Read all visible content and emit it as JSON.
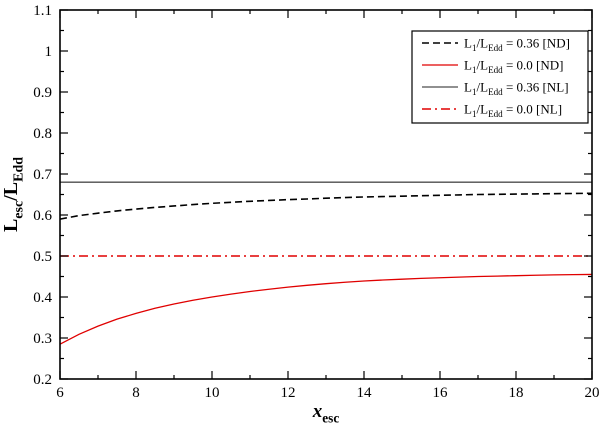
{
  "chart_data": {
    "type": "line",
    "title": "",
    "xlabel": "x_{esc}",
    "ylabel": "L_{esc}/L_{Edd}",
    "xlim": [
      6,
      20
    ],
    "ylim": [
      0.2,
      1.1
    ],
    "x_major_ticks": [
      6,
      8,
      10,
      12,
      14,
      16,
      18,
      20
    ],
    "x_tick_labels": [
      "6",
      "8",
      "10",
      "12",
      "14",
      "16",
      "18",
      "20"
    ],
    "x_minor_step": 1,
    "y_major_ticks": [
      0.2,
      0.3,
      0.4,
      0.5,
      0.6,
      0.7,
      0.8,
      0.9,
      1.0,
      1.1
    ],
    "y_tick_labels": [
      "0.2",
      "0.3",
      "0.4",
      "0.5",
      "0.6",
      "0.7",
      "0.8",
      "0.9",
      "1",
      "1.1"
    ],
    "y_minor_step": 0.05,
    "grid": false,
    "legend_position": "top-right",
    "frame_color": "#000000",
    "background": "#ffffff",
    "series": [
      {
        "name": "L_{1}/L_{Edd} = 0.36 [ND]",
        "color": "#000000",
        "style": "dashed",
        "width": 1.6,
        "points": [
          [
            6,
            0.59
          ],
          [
            6.5,
            0.5985
          ],
          [
            7,
            0.6045
          ],
          [
            7.5,
            0.61
          ],
          [
            8,
            0.6145
          ],
          [
            8.5,
            0.6185
          ],
          [
            9,
            0.622
          ],
          [
            9.5,
            0.6255
          ],
          [
            10,
            0.6285
          ],
          [
            10.5,
            0.631
          ],
          [
            11,
            0.6335
          ],
          [
            11.5,
            0.6355
          ],
          [
            12,
            0.6375
          ],
          [
            12.5,
            0.639
          ],
          [
            13,
            0.641
          ],
          [
            13.5,
            0.6425
          ],
          [
            14,
            0.644
          ],
          [
            14.5,
            0.645
          ],
          [
            15,
            0.646
          ],
          [
            15.5,
            0.647
          ],
          [
            16,
            0.648
          ],
          [
            16.5,
            0.649
          ],
          [
            17,
            0.65
          ],
          [
            17.5,
            0.6505
          ],
          [
            18,
            0.651
          ],
          [
            18.5,
            0.6515
          ],
          [
            19,
            0.652
          ],
          [
            19.5,
            0.6525
          ],
          [
            20,
            0.653
          ]
        ]
      },
      {
        "name": "L_{1}/L_{Edd} = 0.0 [ND]",
        "color": "#e00000",
        "style": "solid",
        "width": 1.3,
        "points": [
          [
            6,
            0.285
          ],
          [
            6.5,
            0.309
          ],
          [
            7,
            0.329
          ],
          [
            7.5,
            0.346
          ],
          [
            8,
            0.36
          ],
          [
            8.5,
            0.3725
          ],
          [
            9,
            0.383
          ],
          [
            9.5,
            0.392
          ],
          [
            10,
            0.4
          ],
          [
            10.5,
            0.407
          ],
          [
            11,
            0.4135
          ],
          [
            11.5,
            0.419
          ],
          [
            12,
            0.424
          ],
          [
            12.5,
            0.4285
          ],
          [
            13,
            0.4325
          ],
          [
            13.5,
            0.436
          ],
          [
            14,
            0.439
          ],
          [
            14.5,
            0.4415
          ],
          [
            15,
            0.4435
          ],
          [
            15.5,
            0.4455
          ],
          [
            16,
            0.447
          ],
          [
            16.5,
            0.4485
          ],
          [
            17,
            0.45
          ],
          [
            17.5,
            0.451
          ],
          [
            18,
            0.452
          ],
          [
            18.5,
            0.453
          ],
          [
            19,
            0.454
          ],
          [
            19.5,
            0.4545
          ],
          [
            20,
            0.455
          ]
        ]
      },
      {
        "name": "L_{1}/L_{Edd} = 0.36 [NL]",
        "color": "#4d4d4d",
        "style": "solid",
        "width": 1.3,
        "points": [
          [
            6,
            0.68
          ],
          [
            20,
            0.68
          ]
        ]
      },
      {
        "name": "L_{1}/L_{Edd} = 0.0 [NL]",
        "color": "#e00000",
        "style": "dashdot",
        "width": 1.4,
        "points": [
          [
            6,
            0.5
          ],
          [
            20,
            0.5
          ]
        ]
      }
    ]
  }
}
